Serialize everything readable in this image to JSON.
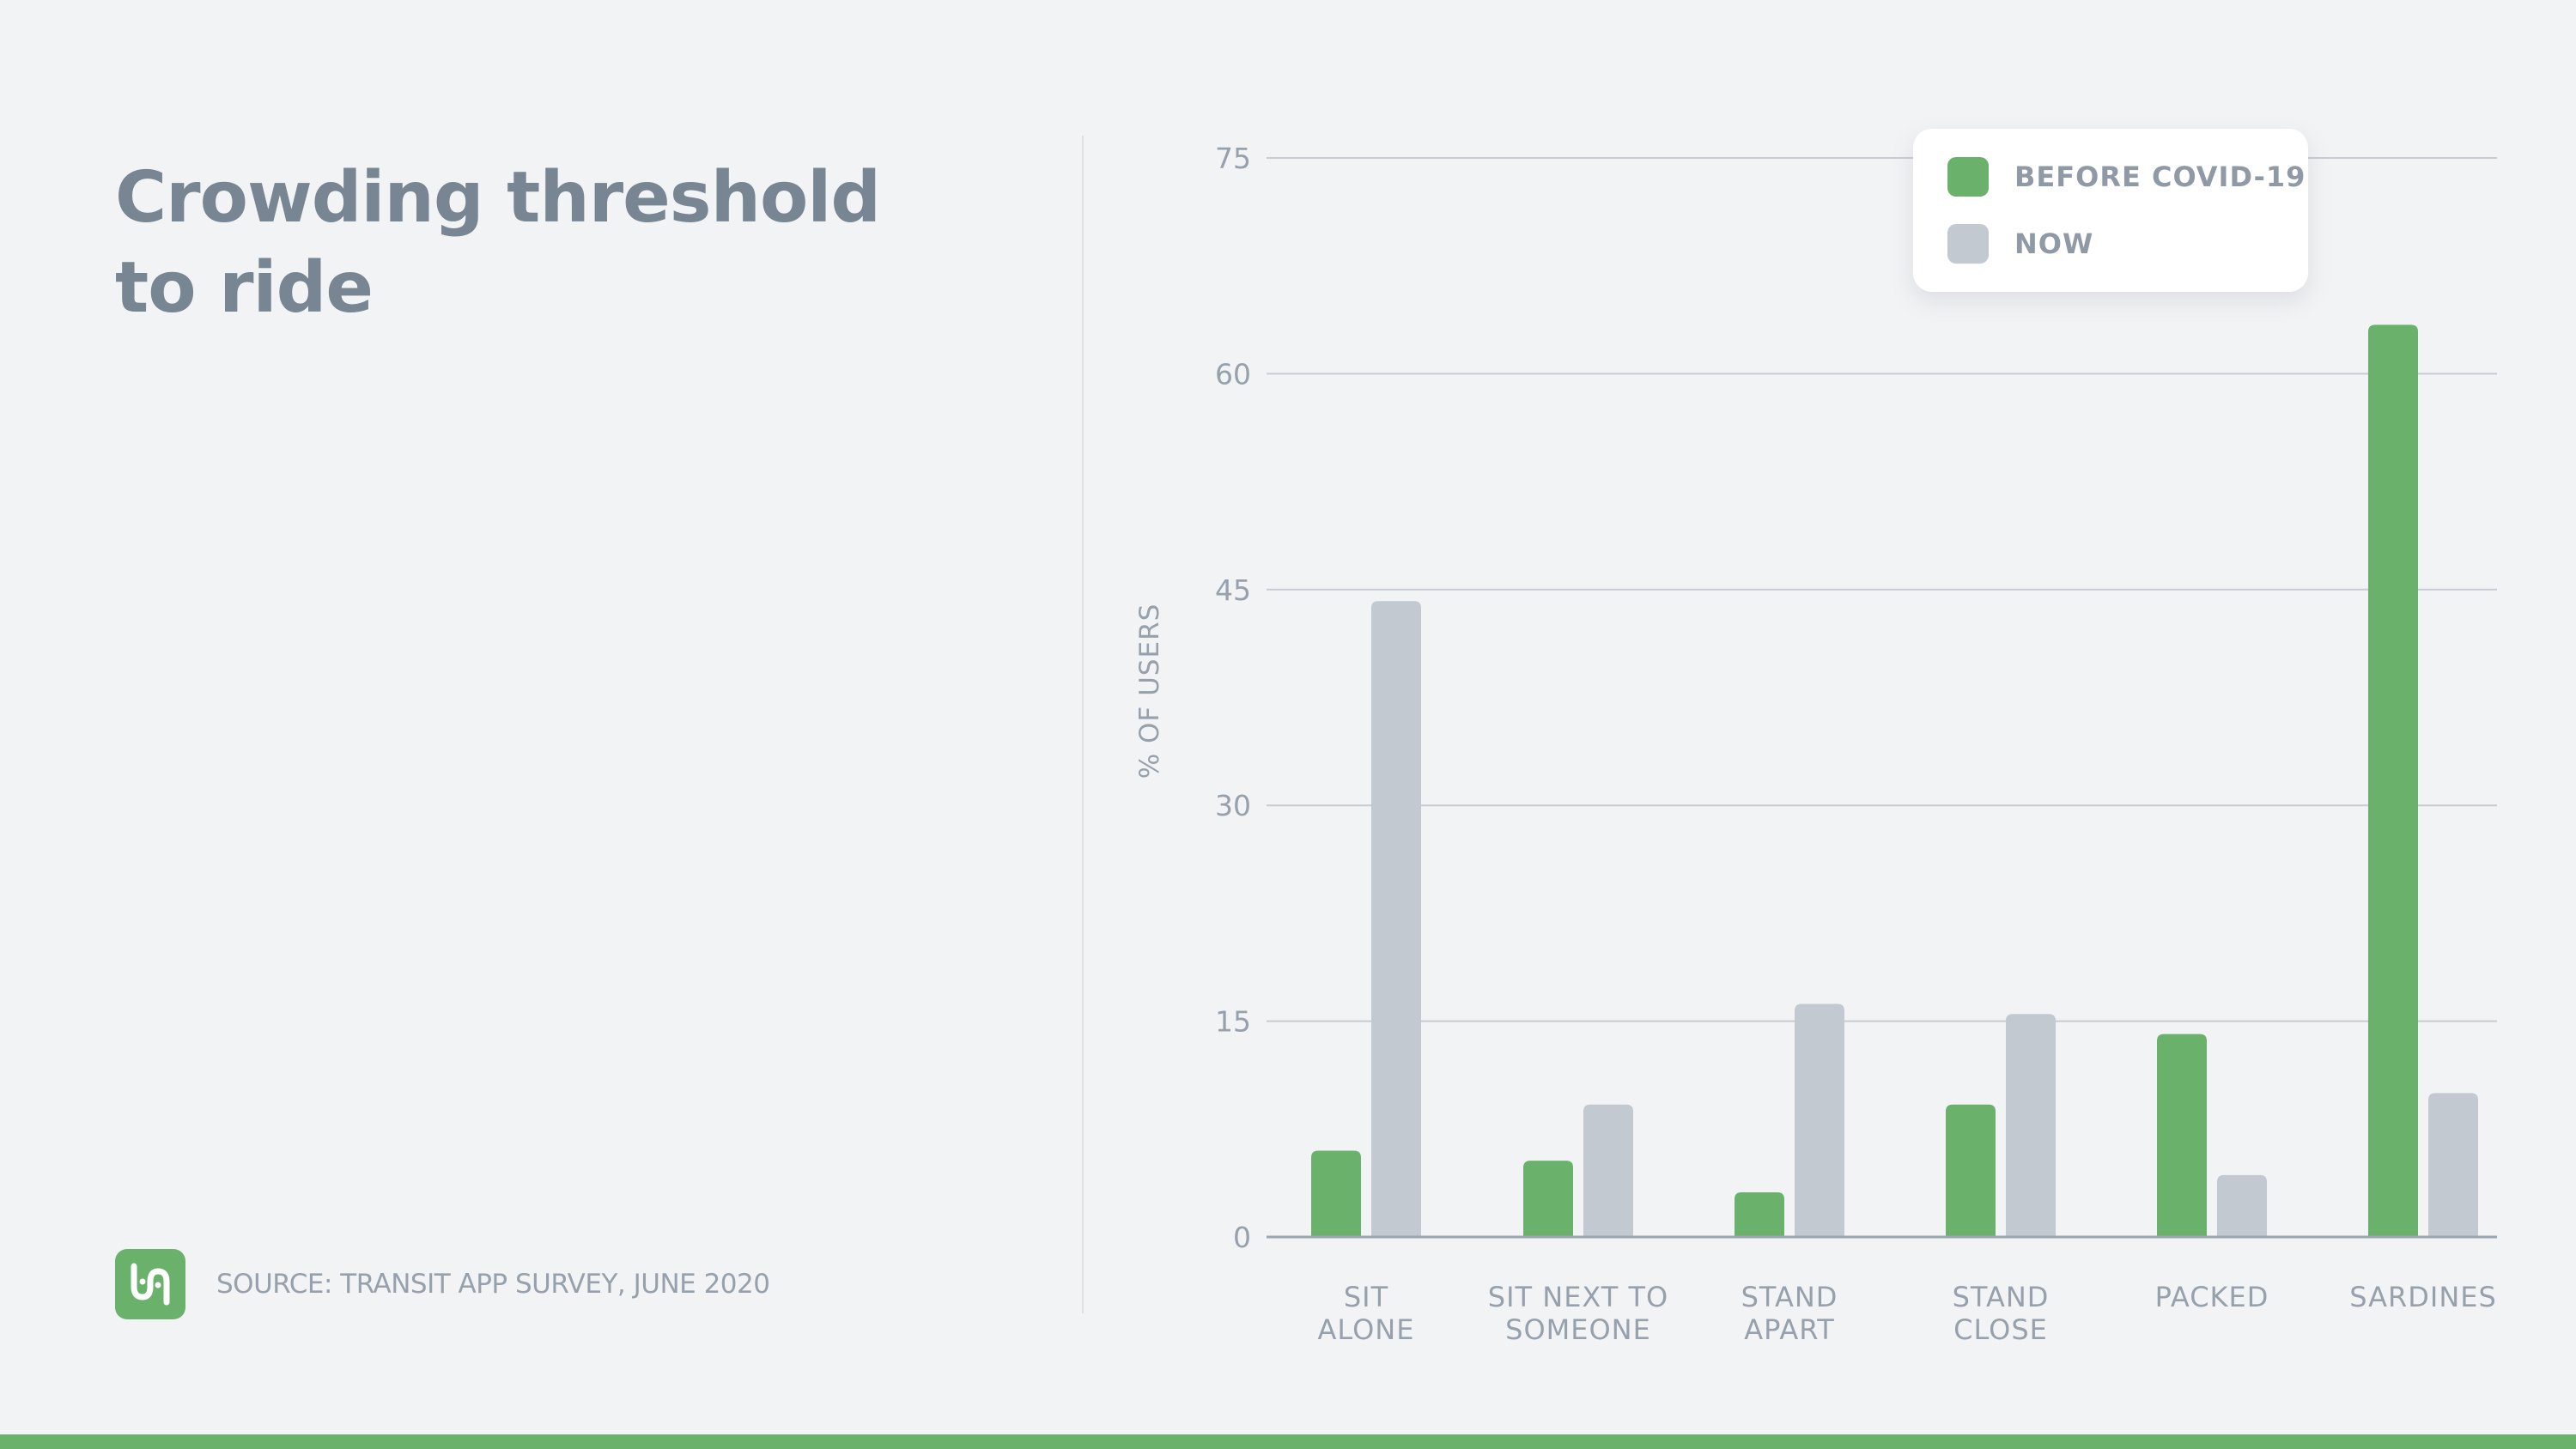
{
  "title_line1": "Crowding threshold",
  "title_line2": "to ride",
  "source": "SOURCE: TRANSIT APP SURVEY, JUNE 2020",
  "logo_icon": "transit-logo-icon",
  "colors": {
    "before": "#6ab26b",
    "now": "#c3c9d0",
    "text": "#788592",
    "muted": "#96a1ac",
    "grid": "#c7ccd2",
    "baseline": "#9aa5b0",
    "background": "#f2f3f5"
  },
  "legend": {
    "before_label": "BEFORE COVID-19",
    "now_label": "NOW"
  },
  "chart_data": {
    "type": "bar",
    "ylabel": "% OF USERS",
    "xlabel": "",
    "ylim": [
      0,
      75
    ],
    "yticks": [
      0,
      15,
      30,
      45,
      60,
      75
    ],
    "grid": true,
    "legend_position": "top-right",
    "categories": [
      [
        "SIT",
        "ALONE"
      ],
      [
        "SIT NEXT TO",
        "SOMEONE"
      ],
      [
        "STAND",
        "APART"
      ],
      [
        "STAND",
        "CLOSE"
      ],
      [
        "PACKED"
      ],
      [
        "SARDINES"
      ]
    ],
    "series": [
      {
        "name": "BEFORE COVID-19",
        "values": [
          6.0,
          5.3,
          3.1,
          9.2,
          14.1,
          63.4
        ]
      },
      {
        "name": "NOW",
        "values": [
          44.2,
          9.2,
          16.2,
          15.5,
          4.3,
          10.0
        ]
      }
    ]
  }
}
